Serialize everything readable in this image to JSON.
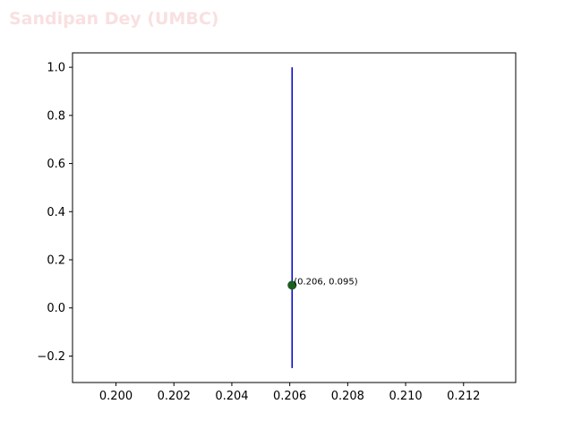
{
  "watermark": "Sandipan Dey (UMBC)",
  "chart_data": {
    "type": "scatter",
    "title": "",
    "xlabel": "",
    "ylabel": "",
    "xlim": [
      0.1985,
      0.2138
    ],
    "ylim": [
      -0.31,
      1.06
    ],
    "xticks": [
      0.2,
      0.202,
      0.204,
      0.206,
      0.208,
      0.21,
      0.212
    ],
    "xtick_labels": [
      "0.200",
      "0.202",
      "0.204",
      "0.206",
      "0.208",
      "0.210",
      "0.212"
    ],
    "yticks": [
      -0.2,
      0.0,
      0.2,
      0.4,
      0.6,
      0.8,
      1.0
    ],
    "ytick_labels": [
      "−0.2",
      "0.0",
      "0.2",
      "0.4",
      "0.6",
      "0.8",
      "1.0"
    ],
    "vline": {
      "x": 0.20608,
      "ymin": -0.25,
      "ymax": 1.0,
      "color": "#0000cc"
    },
    "points": [
      {
        "x": 0.20608,
        "y": 0.0946,
        "label": "(0.206, 0.095)",
        "color": "#1b5e20"
      }
    ],
    "grid": false
  }
}
